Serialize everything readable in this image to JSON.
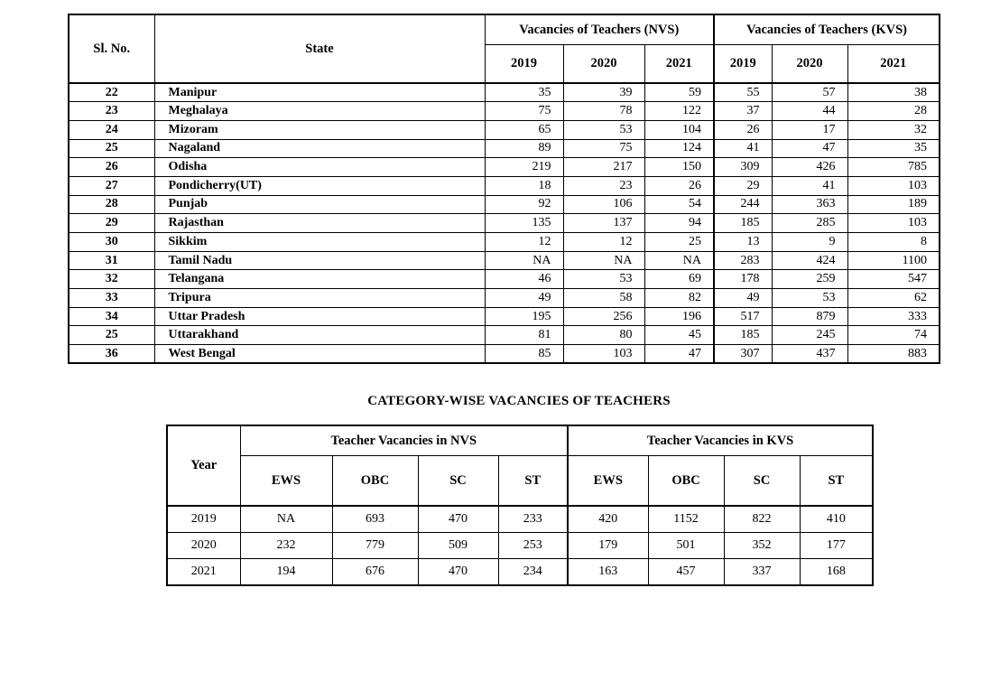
{
  "table1": {
    "header": {
      "sl_no": "Sl. No.",
      "state": "State",
      "nvs_group": "Vacancies of Teachers (NVS)",
      "kvs_group": "Vacancies of Teachers (KVS)",
      "years": [
        "2019",
        "2020",
        "2021",
        "2019",
        "2020",
        "2021"
      ]
    },
    "rows": [
      {
        "sl": "22",
        "state": "Manipur",
        "values": [
          "35",
          "39",
          "59",
          "55",
          "57",
          "38"
        ]
      },
      {
        "sl": "23",
        "state": "Meghalaya",
        "values": [
          "75",
          "78",
          "122",
          "37",
          "44",
          "28"
        ]
      },
      {
        "sl": "24",
        "state": "Mizoram",
        "values": [
          "65",
          "53",
          "104",
          "26",
          "17",
          "32"
        ]
      },
      {
        "sl": "25",
        "state": "Nagaland",
        "values": [
          "89",
          "75",
          "124",
          "41",
          "47",
          "35"
        ]
      },
      {
        "sl": "26",
        "state": "Odisha",
        "values": [
          "219",
          "217",
          "150",
          "309",
          "426",
          "785"
        ]
      },
      {
        "sl": "27",
        "state": "Pondicherry(UT)",
        "values": [
          "18",
          "23",
          "26",
          "29",
          "41",
          "103"
        ]
      },
      {
        "sl": "28",
        "state": "Punjab",
        "values": [
          "92",
          "106",
          "54",
          "244",
          "363",
          "189"
        ]
      },
      {
        "sl": "29",
        "state": "Rajasthan",
        "values": [
          "135",
          "137",
          "94",
          "185",
          "285",
          "103"
        ]
      },
      {
        "sl": "30",
        "state": "Sikkim",
        "values": [
          "12",
          "12",
          "25",
          "13",
          "9",
          "8"
        ]
      },
      {
        "sl": "31",
        "state": "Tamil Nadu",
        "values": [
          "NA",
          "NA",
          "NA",
          "283",
          "424",
          "1100"
        ]
      },
      {
        "sl": "32",
        "state": "Telangana",
        "values": [
          "46",
          "53",
          "69",
          "178",
          "259",
          "547"
        ]
      },
      {
        "sl": "33",
        "state": "Tripura",
        "values": [
          "49",
          "58",
          "82",
          "49",
          "53",
          "62"
        ]
      },
      {
        "sl": "34",
        "state": "Uttar Pradesh",
        "values": [
          "195",
          "256",
          "196",
          "517",
          "879",
          "333"
        ]
      },
      {
        "sl": "25",
        "state": "Uttarakhand",
        "values": [
          "81",
          "80",
          "45",
          "185",
          "245",
          "74"
        ]
      },
      {
        "sl": "36",
        "state": "West Bengal",
        "values": [
          "85",
          "103",
          "47",
          "307",
          "437",
          "883"
        ]
      }
    ]
  },
  "section_title": "CATEGORY-WISE VACANCIES OF TEACHERS",
  "table2": {
    "header": {
      "year": "Year",
      "nvs_group": "Teacher Vacancies in NVS",
      "kvs_group": "Teacher Vacancies in KVS",
      "categories": [
        "EWS",
        "OBC",
        "SC",
        "ST",
        "EWS",
        "OBC",
        "SC",
        "ST"
      ]
    },
    "rows": [
      {
        "year": "2019",
        "values": [
          "NA",
          "693",
          "470",
          "233",
          "420",
          "1152",
          "822",
          "410"
        ]
      },
      {
        "year": "2020",
        "values": [
          "232",
          "779",
          "509",
          "253",
          "179",
          "501",
          "352",
          "177"
        ]
      },
      {
        "year": "2021",
        "values": [
          "194",
          "676",
          "470",
          "234",
          "163",
          "457",
          "337",
          "168"
        ]
      }
    ]
  }
}
